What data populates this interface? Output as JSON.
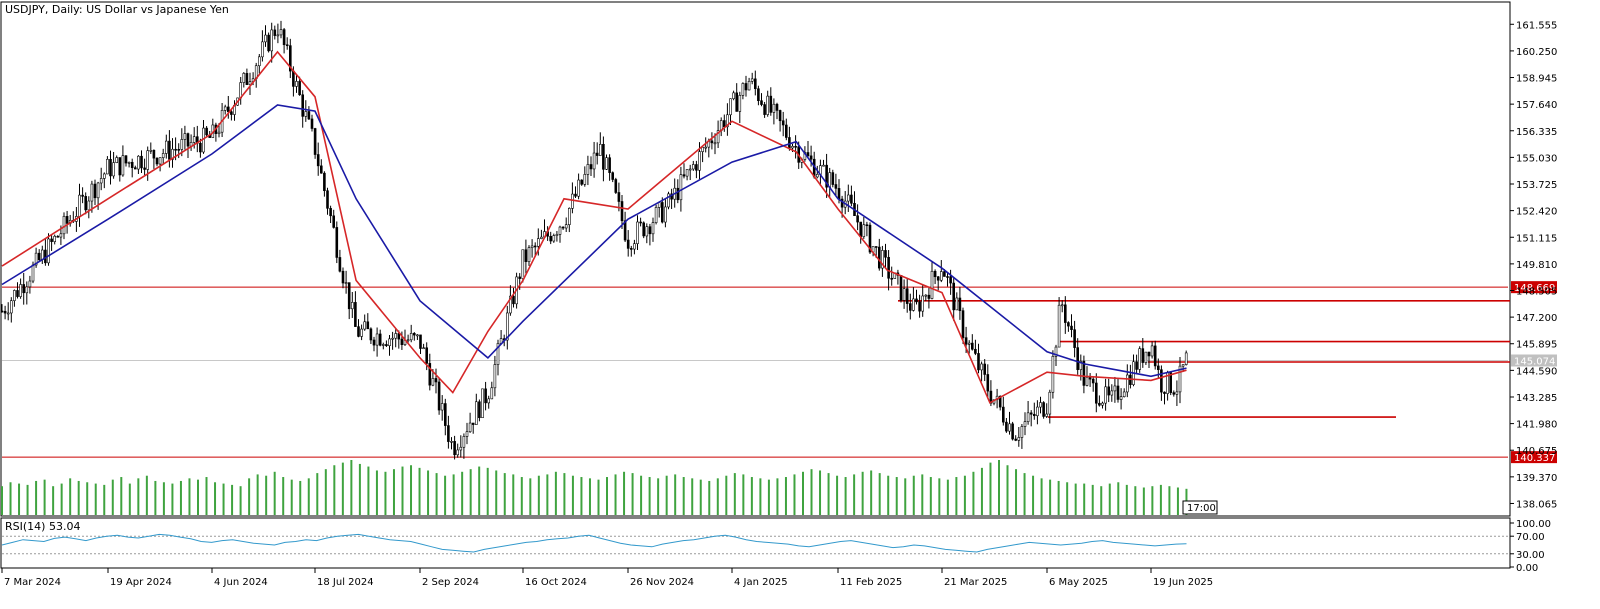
{
  "header": {
    "title": "USDJPY, Daily:  US Dollar vs Japanese Yen"
  },
  "rsi_panel": {
    "label": "RSI(14) 53.04"
  },
  "timer": {
    "text": "17:00"
  },
  "colors": {
    "bull": "#000000",
    "bear": "#000000",
    "ma_fast": "#d62728",
    "ma_slow": "#1a1aa6",
    "level": "#cc0000",
    "volume": "#3fa33f",
    "rsi": "#3399cc",
    "current_price_tag": "#c0c0c0"
  },
  "chart_data": {
    "type": "candlestick",
    "symbol": "USDJPY",
    "timeframe": "Daily",
    "title": "USDJPY, Daily:  US Dollar vs Japanese Yen",
    "ylim": [
      137.5,
      162.5
    ],
    "y_ticks": [
      "161.555",
      "160.250",
      "158.945",
      "157.640",
      "156.335",
      "155.030",
      "153.725",
      "152.420",
      "151.115",
      "149.810",
      "148.505",
      "147.200",
      "145.895",
      "144.590",
      "143.285",
      "141.980",
      "140.675",
      "139.370",
      "138.065"
    ],
    "x_ticks": [
      "7 Mar 2024",
      "19 Apr 2024",
      "4 Jun 2024",
      "18 Jul 2024",
      "2 Sep 2024",
      "16 Oct 2024",
      "26 Nov 2024",
      "4 Jan 2025",
      "11 Feb 2025",
      "21 Mar 2025",
      "6 May 2025",
      "19 Jun 2025"
    ],
    "price_series": {
      "x": [
        "7 Mar 2024",
        "19 Apr 2024",
        "4 Jun 2024",
        "2 Jul 2024",
        "18 Jul 2024",
        "5 Aug 2024",
        "2 Sep 2024",
        "16 Sep 2024",
        "1 Oct 2024",
        "16 Oct 2024",
        "1 Nov 2024",
        "15 Nov 2024",
        "26 Nov 2024",
        "10 Dec 2024",
        "4 Jan 2025",
        "10 Jan 2025",
        "27 Jan 2025",
        "11 Feb 2025",
        "1 Mar 2025",
        "11 Mar 2025",
        "21 Mar 2025",
        "1 Apr 2025",
        "11 Apr 2025",
        "22 Apr 2025",
        "6 May 2025",
        "12 May 2025",
        "22 May 2025",
        "2 Jun 2025",
        "19 Jun 2025",
        "23 Jun 2025",
        "30 Jun 2025",
        "4 Jul 2025"
      ],
      "close": [
        147.5,
        154.5,
        156.0,
        161.5,
        155.5,
        146.5,
        146.0,
        140.8,
        143.5,
        150.0,
        152.0,
        155.5,
        151.0,
        152.5,
        157.5,
        158.8,
        155.5,
        153.5,
        149.5,
        147.5,
        149.8,
        146.0,
        143.5,
        141.5,
        143.0,
        148.0,
        144.0,
        143.0,
        146.0,
        144.0,
        143.8,
        145.1
      ]
    },
    "moving_averages": [
      {
        "x": [
          "7 Mar 2024",
          "19 Apr 2024",
          "4 Jun 2024",
          "2 Jul 2024",
          "18 Jul 2024",
          "5 Aug 2024",
          "2 Sep 2024",
          "16 Sep 2024",
          "1 Oct 2024",
          "16 Oct 2024",
          "1 Nov 2024",
          "26 Nov 2024",
          "4 Jan 2025",
          "27 Jan 2025",
          "11 Feb 2025",
          "1 Mar 2025",
          "21 Mar 2025",
          "11 Apr 2025",
          "6 May 2025",
          "22 May 2025",
          "19 Jun 2025",
          "4 Jul 2025"
        ],
        "values": [
          149.7,
          153.0,
          156.2,
          160.2,
          158.0,
          149.0,
          145.2,
          143.5,
          146.5,
          149.0,
          153.0,
          152.5,
          156.8,
          155.3,
          152.5,
          149.5,
          148.4,
          143.0,
          144.5,
          144.3,
          144.1,
          144.6
        ]
      },
      {
        "x": [
          "7 Mar 2024",
          "19 Apr 2024",
          "4 Jun 2024",
          "2 Jul 2024",
          "18 Jul 2024",
          "5 Aug 2024",
          "2 Sep 2024",
          "1 Oct 2024",
          "16 Oct 2024",
          "26 Nov 2024",
          "4 Jan 2025",
          "27 Jan 2025",
          "11 Feb 2025",
          "21 Mar 2025",
          "6 May 2025",
          "22 May 2025",
          "19 Jun 2025",
          "4 Jul 2025"
        ],
        "values": [
          148.8,
          152.0,
          155.2,
          157.6,
          157.3,
          153.0,
          148.0,
          145.2,
          147.0,
          152.0,
          154.8,
          155.8,
          153.0,
          149.6,
          145.5,
          144.9,
          144.3,
          144.7
        ]
      }
    ],
    "horizontal_levels": [
      {
        "value": 148.669,
        "label": "148.669"
      },
      {
        "value": 140.337,
        "label": "140.337"
      },
      {
        "value": 148.0
      },
      {
        "value": 146.0
      },
      {
        "value": 145.0
      },
      {
        "value": 142.3
      }
    ],
    "current_price": {
      "value": 145.074,
      "label": "145.074"
    },
    "volume": {
      "values": [
        22,
        25,
        24,
        23,
        26,
        27,
        22,
        24,
        28,
        26,
        25,
        24,
        23,
        27,
        29,
        24,
        28,
        30,
        26,
        25,
        24,
        26,
        28,
        27,
        29,
        25,
        24,
        23,
        22,
        28,
        31,
        30,
        33,
        29,
        27,
        26,
        28,
        32,
        35,
        38,
        40,
        42,
        39,
        37,
        34,
        33,
        35,
        37,
        38,
        36,
        34,
        32,
        30,
        31,
        33,
        35,
        37,
        36,
        34,
        32,
        31,
        29,
        28,
        30,
        31,
        33,
        32,
        30,
        29,
        28,
        27,
        29,
        31,
        33,
        32,
        30,
        29,
        28,
        30,
        31,
        29,
        28,
        27,
        26,
        28,
        30,
        32,
        31,
        29,
        28,
        27,
        28,
        29,
        31,
        33,
        35,
        34,
        32,
        30,
        29,
        31,
        33,
        34,
        32,
        30,
        29,
        28,
        30,
        31,
        29,
        28,
        27,
        29,
        30,
        33,
        36,
        40,
        42,
        38,
        35,
        32,
        30,
        28,
        27,
        26,
        25,
        24,
        24,
        23,
        22,
        24,
        25,
        23,
        22,
        21,
        22,
        23,
        22,
        21,
        20
      ]
    },
    "rsi": {
      "label": "RSI(14) 53.04",
      "value": 53.04,
      "levels": [
        100,
        70,
        30,
        0
      ],
      "level_labels": [
        "100.00",
        "70.00",
        "30.00",
        "0.00"
      ],
      "values": [
        50,
        56,
        62,
        60,
        58,
        65,
        68,
        64,
        60,
        66,
        70,
        72,
        68,
        66,
        70,
        74,
        72,
        68,
        64,
        58,
        56,
        60,
        62,
        58,
        54,
        52,
        50,
        56,
        58,
        62,
        60,
        66,
        70,
        72,
        74,
        70,
        66,
        62,
        60,
        58,
        52,
        46,
        40,
        38,
        36,
        34,
        40,
        44,
        48,
        52,
        56,
        58,
        62,
        64,
        66,
        70,
        72,
        66,
        60,
        54,
        50,
        48,
        46,
        52,
        56,
        60,
        62,
        66,
        70,
        72,
        68,
        62,
        58,
        56,
        54,
        52,
        48,
        46,
        50,
        54,
        58,
        60,
        56,
        52,
        48,
        44,
        46,
        50,
        48,
        44,
        40,
        38,
        36,
        34,
        40,
        44,
        48,
        52,
        56,
        54,
        52,
        50,
        52,
        54,
        58,
        60,
        56,
        54,
        52,
        50,
        48,
        50,
        52,
        53
      ]
    }
  }
}
